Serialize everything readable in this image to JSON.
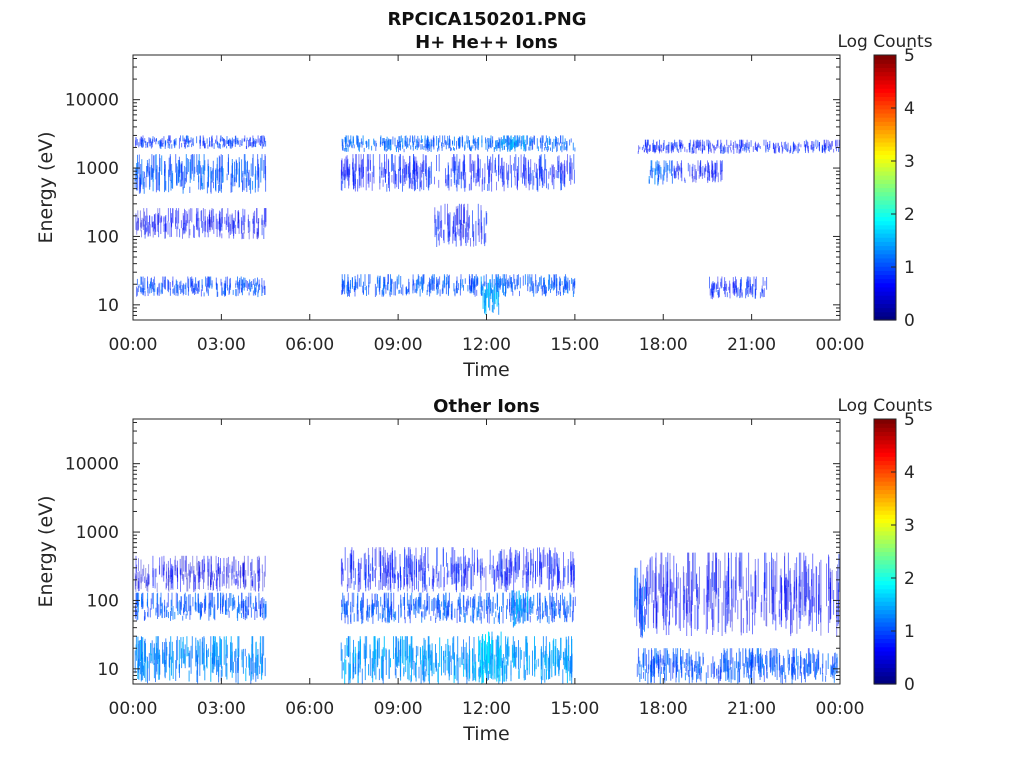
{
  "figure_title": "RPCICA150201.PNG",
  "chart_data": [
    {
      "type": "heatmap",
      "title": "H+ He++ Ions",
      "xlabel": "Time",
      "ylabel": "Energy (eV)",
      "x_ticks": [
        "00:00",
        "03:00",
        "06:00",
        "09:00",
        "12:00",
        "15:00",
        "18:00",
        "21:00",
        "00:00"
      ],
      "y_ticks": [
        "10",
        "100",
        "1000",
        "10000"
      ],
      "y_scale": "log",
      "x_range_hours": [
        0,
        24
      ],
      "y_range_ev": [
        6,
        45000
      ],
      "colorbar": {
        "label": "Log Counts",
        "ticks": [
          "0",
          "1",
          "2",
          "3",
          "4",
          "5"
        ],
        "range": [
          0,
          5
        ],
        "colormap": "jet"
      },
      "data_gaps_hours": [
        [
          4.55,
          7.05
        ],
        [
          15.0,
          17.1
        ]
      ],
      "bands": [
        {
          "t": [
            0.05,
            4.5
          ],
          "e": [
            1900,
            3000
          ],
          "level": 0.45
        },
        {
          "t": [
            0.05,
            4.5
          ],
          "e": [
            420,
            1600
          ],
          "level": 0.55
        },
        {
          "t": [
            0.05,
            4.5
          ],
          "e": [
            13,
            26
          ],
          "level": 0.5
        },
        {
          "t": [
            0.05,
            4.5
          ],
          "e": [
            90,
            260
          ],
          "level": 0.25
        },
        {
          "t": [
            7.05,
            15.0
          ],
          "e": [
            1700,
            3000
          ],
          "level": 0.6
        },
        {
          "t": [
            7.05,
            15.0
          ],
          "e": [
            450,
            1600
          ],
          "level": 0.35
        },
        {
          "t": [
            7.05,
            15.0
          ],
          "e": [
            13,
            28
          ],
          "level": 0.55
        },
        {
          "t": [
            11.8,
            12.4
          ],
          "e": [
            7,
            26
          ],
          "level": 0.85
        },
        {
          "t": [
            12.5,
            13.3
          ],
          "e": [
            1700,
            3000
          ],
          "level": 0.8
        },
        {
          "t": [
            10.2,
            12.0
          ],
          "e": [
            70,
            300
          ],
          "level": 0.3
        },
        {
          "t": [
            17.1,
            24.0
          ],
          "e": [
            1600,
            2600
          ],
          "level": 0.35
        },
        {
          "t": [
            17.5,
            18.3
          ],
          "e": [
            550,
            1300
          ],
          "level": 0.6
        },
        {
          "t": [
            18.3,
            20.0
          ],
          "e": [
            600,
            1300
          ],
          "level": 0.3
        },
        {
          "t": [
            19.5,
            21.5
          ],
          "e": [
            12,
            26
          ],
          "level": 0.35
        }
      ]
    },
    {
      "type": "heatmap",
      "title": "Other Ions",
      "xlabel": "Time",
      "ylabel": "Energy (eV)",
      "x_ticks": [
        "00:00",
        "03:00",
        "06:00",
        "09:00",
        "12:00",
        "15:00",
        "18:00",
        "21:00",
        "00:00"
      ],
      "y_ticks": [
        "10",
        "100",
        "1000",
        "10000"
      ],
      "y_scale": "log",
      "x_range_hours": [
        0,
        24
      ],
      "y_range_ev": [
        6,
        45000
      ],
      "colorbar": {
        "label": "Log Counts",
        "ticks": [
          "0",
          "1",
          "2",
          "3",
          "4",
          "5"
        ],
        "range": [
          0,
          5
        ],
        "colormap": "jet"
      },
      "data_gaps_hours": [
        [
          4.55,
          7.05
        ],
        [
          15.0,
          17.1
        ]
      ],
      "bands": [
        {
          "t": [
            0.05,
            4.5
          ],
          "e": [
            6,
            30
          ],
          "level": 0.75
        },
        {
          "t": [
            0.05,
            4.5
          ],
          "e": [
            50,
            130
          ],
          "level": 0.55
        },
        {
          "t": [
            0.05,
            4.5
          ],
          "e": [
            130,
            450
          ],
          "level": 0.2
        },
        {
          "t": [
            7.05,
            15.0
          ],
          "e": [
            6,
            30
          ],
          "level": 0.8
        },
        {
          "t": [
            7.05,
            15.0
          ],
          "e": [
            45,
            130
          ],
          "level": 0.55
        },
        {
          "t": [
            7.05,
            15.0
          ],
          "e": [
            130,
            600
          ],
          "level": 0.3
        },
        {
          "t": [
            11.7,
            12.5
          ],
          "e": [
            6,
            35
          ],
          "level": 0.95
        },
        {
          "t": [
            12.8,
            13.4
          ],
          "e": [
            40,
            140
          ],
          "level": 0.8
        },
        {
          "t": [
            17.1,
            24.0
          ],
          "e": [
            6,
            20
          ],
          "level": 0.55
        },
        {
          "t": [
            17.1,
            24.0
          ],
          "e": [
            30,
            500
          ],
          "level": 0.25
        },
        {
          "t": [
            17.0,
            17.4
          ],
          "e": [
            25,
            300
          ],
          "level": 0.55
        }
      ]
    }
  ]
}
